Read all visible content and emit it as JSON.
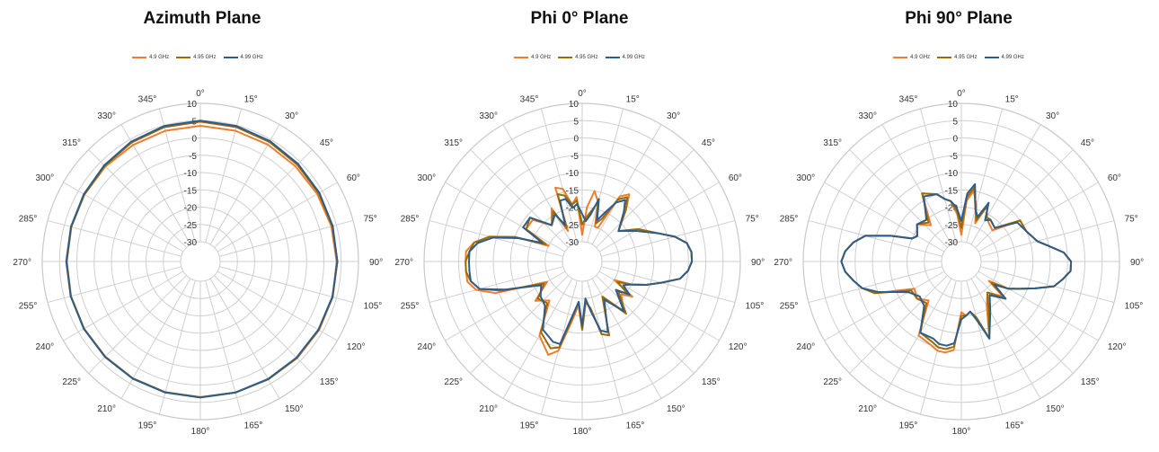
{
  "chart_data": [
    {
      "type": "line",
      "subtype": "polar",
      "title": "Azimuth Plane",
      "radial_ticks": [
        10,
        5,
        0,
        -5,
        -10,
        -15,
        -20,
        -25,
        -30
      ],
      "radial_range": [
        -30,
        10
      ],
      "angle_ticks": [
        "0°",
        "15°",
        "30°",
        "45°",
        "60°",
        "75°",
        "90°",
        "105°",
        "120°",
        "135°",
        "150°",
        "165°",
        "180°",
        "195°",
        "210°",
        "225°",
        "240°",
        "255°",
        "270°",
        "285°",
        "300°",
        "315°",
        "330°",
        "345°"
      ],
      "grid": true,
      "legend_position": "top",
      "series": [
        {
          "name": "4.9 GHz",
          "color": "#ED7D31",
          "theta": [
            0,
            15,
            30,
            45,
            60,
            75,
            90,
            105,
            120,
            135,
            150,
            165,
            180,
            195,
            210,
            225,
            240,
            255,
            270,
            285,
            300,
            315,
            330,
            345
          ],
          "r": [
            3.5,
            3.4,
            3.3,
            3.2,
            3.3,
            3.5,
            3.7,
            3.9,
            3.9,
            3.8,
            3.6,
            3.5,
            3.5,
            3.4,
            3.3,
            3.2,
            3.2,
            3.1,
            3.1,
            3.0,
            3.0,
            3.1,
            3.2,
            3.4
          ]
        },
        {
          "name": "4.95 GHz",
          "color": "#9C6B00",
          "theta": [
            0,
            15,
            30,
            45,
            60,
            75,
            90,
            105,
            120,
            135,
            150,
            165,
            180,
            195,
            210,
            225,
            240,
            255,
            270,
            285,
            300,
            315,
            330,
            345
          ],
          "r": [
            4.7,
            4.5,
            4.2,
            3.9,
            3.8,
            3.8,
            3.9,
            3.9,
            3.8,
            3.7,
            3.6,
            3.5,
            3.5,
            3.4,
            3.3,
            3.2,
            3.1,
            3.0,
            2.9,
            2.9,
            3.0,
            3.4,
            4.0,
            4.5
          ]
        },
        {
          "name": "4.99 GHz",
          "color": "#2E5D8A",
          "theta": [
            0,
            15,
            30,
            45,
            60,
            75,
            90,
            105,
            120,
            135,
            150,
            165,
            180,
            195,
            210,
            225,
            240,
            255,
            270,
            285,
            300,
            315,
            330,
            345
          ],
          "r": [
            5.0,
            4.8,
            4.5,
            4.2,
            4.0,
            3.9,
            3.9,
            3.8,
            3.7,
            3.6,
            3.5,
            3.5,
            3.6,
            3.5,
            3.4,
            3.3,
            3.2,
            3.1,
            3.0,
            3.0,
            3.2,
            3.6,
            4.3,
            4.8
          ]
        }
      ]
    },
    {
      "type": "line",
      "subtype": "polar",
      "title": "Phi 0° Plane",
      "radial_ticks": [
        10,
        5,
        0,
        -5,
        -10,
        -15,
        -20,
        -25,
        -30
      ],
      "radial_range": [
        -30,
        10
      ],
      "angle_ticks": [
        "0°",
        "15°",
        "30°",
        "45°",
        "60°",
        "75°",
        "90°",
        "105°",
        "120°",
        "135°",
        "150°",
        "165°",
        "180°",
        "195°",
        "210°",
        "225°",
        "240°",
        "255°",
        "270°",
        "285°",
        "300°",
        "315°",
        "330°",
        "345°"
      ],
      "grid": true,
      "legend_position": "top",
      "series": [
        {
          "name": "4.9 GHz",
          "color": "#ED7D31",
          "theta": [
            0,
            5,
            10,
            15,
            20,
            25,
            30,
            35,
            40,
            50,
            60,
            70,
            75,
            80,
            85,
            90,
            95,
            100,
            105,
            110,
            115,
            120,
            125,
            130,
            140,
            150,
            160,
            165,
            170,
            175,
            180,
            185,
            190,
            195,
            200,
            210,
            220,
            230,
            240,
            250,
            255,
            260,
            265,
            270,
            275,
            280,
            285,
            290,
            295,
            300,
            310,
            320,
            330,
            335,
            340,
            345,
            350,
            355
          ],
          "r": [
            -28,
            -20,
            -15,
            -18,
            -25,
            -25,
            -14,
            -12,
            -16,
            -22,
            -17,
            -12,
            -8,
            -5,
            -4,
            -4,
            -5,
            -7,
            -12,
            -16,
            -20,
            -25,
            -18,
            -21,
            -17,
            -24,
            -13,
            -14,
            -22,
            -24,
            -16,
            -23,
            -18,
            -9,
            -7,
            -11,
            -21,
            -18,
            -24,
            -9,
            -4,
            -2,
            -2,
            -2,
            -2,
            -4,
            -8,
            -15,
            -25,
            -17,
            -17,
            -22,
            -18,
            -26,
            -13,
            -14,
            -19,
            -17
          ]
        },
        {
          "name": "4.95 GHz",
          "color": "#9C6B00",
          "theta": [
            0,
            5,
            10,
            15,
            20,
            25,
            30,
            35,
            40,
            50,
            60,
            70,
            75,
            80,
            85,
            90,
            95,
            100,
            105,
            110,
            115,
            120,
            125,
            130,
            140,
            150,
            160,
            165,
            170,
            175,
            180,
            185,
            190,
            195,
            200,
            210,
            220,
            230,
            240,
            250,
            255,
            260,
            265,
            270,
            275,
            280,
            285,
            290,
            295,
            300,
            310,
            320,
            330,
            335,
            340,
            345,
            350,
            355
          ],
          "r": [
            -25,
            -23,
            -21,
            -18,
            -24,
            -22,
            -15,
            -13,
            -16,
            -22,
            -17,
            -12,
            -8,
            -5,
            -4,
            -4,
            -5,
            -7,
            -12,
            -16,
            -20,
            -24,
            -20,
            -22,
            -16,
            -24,
            -13,
            -14,
            -22,
            -24,
            -16,
            -24,
            -19,
            -10,
            -9,
            -12,
            -20,
            -19,
            -23,
            -11,
            -5,
            -3,
            -2,
            -2,
            -3,
            -4,
            -8,
            -15,
            -24,
            -17,
            -16,
            -22,
            -19,
            -25,
            -15,
            -16,
            -19,
            -18
          ]
        },
        {
          "name": "4.99 GHz",
          "color": "#2E5D8A",
          "theta": [
            0,
            5,
            10,
            15,
            20,
            25,
            30,
            35,
            40,
            50,
            60,
            70,
            75,
            80,
            85,
            90,
            95,
            100,
            105,
            110,
            115,
            120,
            125,
            130,
            140,
            150,
            160,
            165,
            170,
            175,
            180,
            185,
            190,
            195,
            200,
            210,
            220,
            230,
            240,
            250,
            255,
            260,
            265,
            270,
            275,
            280,
            285,
            290,
            295,
            300,
            310,
            320,
            330,
            335,
            340,
            345,
            350,
            355
          ],
          "r": [
            -22,
            -24,
            -22,
            -17,
            -23,
            -20,
            -16,
            -14,
            -17,
            -22,
            -18,
            -12,
            -8,
            -5,
            -4,
            -4,
            -5,
            -7,
            -12,
            -16,
            -20,
            -22,
            -19,
            -23,
            -17,
            -23,
            -14,
            -15,
            -21,
            -25,
            -17,
            -24,
            -20,
            -11,
            -11,
            -13,
            -19,
            -20,
            -22,
            -12,
            -5,
            -3,
            -3,
            -3,
            -3,
            -5,
            -9,
            -16,
            -23,
            -16,
            -16,
            -22,
            -20,
            -24,
            -17,
            -17,
            -20,
            -19
          ]
        }
      ]
    },
    {
      "type": "line",
      "subtype": "polar",
      "title": "Phi 90° Plane",
      "radial_ticks": [
        10,
        5,
        0,
        -5,
        -10,
        -15,
        -20,
        -25,
        -30
      ],
      "radial_range": [
        -30,
        10
      ],
      "angle_ticks": [
        "0°",
        "15°",
        "30°",
        "45°",
        "60°",
        "75°",
        "90°",
        "105°",
        "120°",
        "135°",
        "150°",
        "165°",
        "180°",
        "195°",
        "210°",
        "225°",
        "240°",
        "255°",
        "270°",
        "285°",
        "300°",
        "315°",
        "330°",
        "345°"
      ],
      "grid": true,
      "legend_position": "top",
      "series": [
        {
          "name": "4.9 GHz",
          "color": "#ED7D31",
          "theta": [
            0,
            5,
            10,
            15,
            20,
            25,
            30,
            35,
            45,
            55,
            65,
            75,
            80,
            85,
            90,
            95,
            100,
            105,
            110,
            115,
            120,
            125,
            130,
            140,
            150,
            160,
            165,
            170,
            175,
            180,
            185,
            190,
            195,
            200,
            210,
            220,
            230,
            240,
            250,
            255,
            260,
            265,
            270,
            275,
            280,
            285,
            290,
            295,
            300,
            310,
            320,
            330,
            340,
            345,
            350,
            355
          ],
          "r": [
            -28,
            -18,
            -15,
            -19,
            -24,
            -18,
            -21,
            -22,
            -23,
            -15,
            -15,
            -13,
            -10,
            -6,
            -4,
            -4,
            -6,
            -8,
            -13,
            -17,
            -20,
            -26,
            -20,
            -24,
            -21,
            -12,
            -19,
            -21,
            -20,
            -21,
            -10,
            -9,
            -9,
            -10,
            -11,
            -21,
            -19,
            -20,
            -9,
            -6,
            -4,
            -2,
            -1,
            -2,
            -4,
            -7,
            -14,
            -20,
            -21,
            -19,
            -22,
            -13,
            -15,
            -17,
            -18,
            -22
          ]
        },
        {
          "name": "4.95 GHz",
          "color": "#9C6B00",
          "theta": [
            0,
            5,
            10,
            15,
            20,
            25,
            30,
            35,
            45,
            55,
            65,
            75,
            80,
            85,
            90,
            95,
            100,
            105,
            110,
            115,
            120,
            125,
            130,
            140,
            150,
            160,
            165,
            170,
            175,
            180,
            185,
            190,
            195,
            200,
            210,
            220,
            230,
            240,
            250,
            255,
            260,
            265,
            270,
            275,
            280,
            285,
            290,
            295,
            300,
            310,
            320,
            330,
            340,
            345,
            350,
            355
          ],
          "r": [
            -26,
            -17,
            -14,
            -20,
            -23,
            -18,
            -21,
            -21,
            -22,
            -15,
            -15,
            -13,
            -10,
            -6,
            -4,
            -4,
            -6,
            -8,
            -13,
            -17,
            -20,
            -25,
            -19,
            -24,
            -20,
            -12,
            -19,
            -21,
            -20,
            -20,
            -11,
            -10,
            -10,
            -11,
            -12,
            -20,
            -19,
            -19,
            -9,
            -6,
            -4,
            -2,
            -1,
            -2,
            -4,
            -7,
            -14,
            -20,
            -21,
            -19,
            -21,
            -13,
            -15,
            -17,
            -18,
            -21
          ]
        },
        {
          "name": "4.99 GHz",
          "color": "#2E5D8A",
          "theta": [
            0,
            5,
            10,
            15,
            20,
            25,
            30,
            35,
            45,
            55,
            65,
            75,
            80,
            85,
            90,
            95,
            100,
            105,
            110,
            115,
            120,
            125,
            130,
            140,
            150,
            160,
            165,
            170,
            175,
            180,
            185,
            190,
            195,
            200,
            210,
            220,
            230,
            240,
            250,
            255,
            260,
            265,
            270,
            275,
            280,
            285,
            290,
            295,
            300,
            310,
            320,
            330,
            340,
            345,
            350,
            355
          ],
          "r": [
            -24,
            -16,
            -13,
            -20,
            -22,
            -17,
            -22,
            -21,
            -22,
            -16,
            -15,
            -13,
            -10,
            -6,
            -4,
            -4,
            -6,
            -8,
            -13,
            -17,
            -20,
            -24,
            -19,
            -23,
            -19,
            -12,
            -18,
            -21,
            -20,
            -19,
            -12,
            -11,
            -11,
            -12,
            -12,
            -19,
            -20,
            -18,
            -10,
            -6,
            -4,
            -2,
            -1,
            -2,
            -4,
            -7,
            -14,
            -20,
            -21,
            -19,
            -20,
            -14,
            -15,
            -17,
            -18,
            -20
          ]
        }
      ]
    }
  ]
}
